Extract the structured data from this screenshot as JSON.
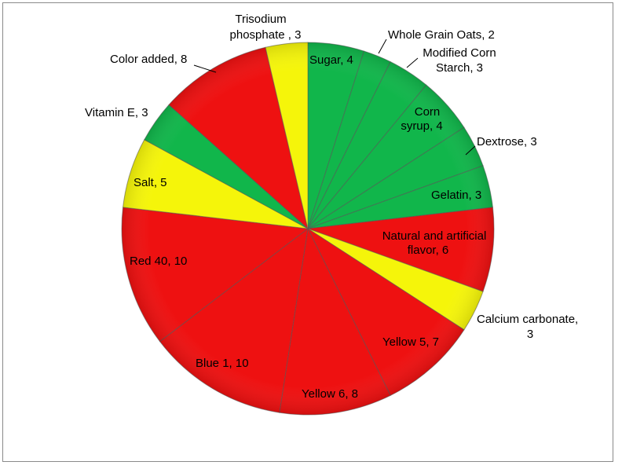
{
  "chart_data": {
    "type": "pie",
    "title": "",
    "start_angle_deg": 0,
    "direction": "clockwise",
    "slices": [
      {
        "label": "Sugar, 4",
        "category": "Sugar",
        "value": 4,
        "color": "#11b64b"
      },
      {
        "label": "Whole Grain Oats, 2",
        "category": "Whole Grain Oats",
        "value": 2,
        "color": "#11b64b"
      },
      {
        "label": "Modified Corn Starch, 3",
        "category": "Modified Corn Starch",
        "value": 3,
        "color": "#11b64b"
      },
      {
        "label": "Corn syrup, 4",
        "category": "Corn syrup",
        "value": 4,
        "color": "#11b64b"
      },
      {
        "label": "Dextrose, 3",
        "category": "Dextrose",
        "value": 3,
        "color": "#11b64b"
      },
      {
        "label": "Gelatin, 3",
        "category": "Gelatin",
        "value": 3,
        "color": "#11b64b"
      },
      {
        "label": "Natural and artificial flavor, 6",
        "category": "Natural and artificial flavor",
        "value": 6,
        "color": "#ee1111"
      },
      {
        "label": "Calcium carbonate, 3",
        "category": "Calcium carbonate",
        "value": 3,
        "color": "#f5f50a"
      },
      {
        "label": "Yellow 5, 7",
        "category": "Yellow 5",
        "value": 7,
        "color": "#ee1111"
      },
      {
        "label": "Yellow 6, 8",
        "category": "Yellow 6",
        "value": 8,
        "color": "#ee1111"
      },
      {
        "label": "Blue 1, 10",
        "category": "Blue 1",
        "value": 10,
        "color": "#ee1111"
      },
      {
        "label": "Red 40, 10",
        "category": "Red 40",
        "value": 10,
        "color": "#ee1111"
      },
      {
        "label": "Salt, 5",
        "category": "Salt",
        "value": 5,
        "color": "#f5f50a"
      },
      {
        "label": "Vitamin E, 3",
        "category": "Vitamin E",
        "value": 3,
        "color": "#11b64b"
      },
      {
        "label": "Color added, 8",
        "category": "Color added",
        "value": 8,
        "color": "#ee1111"
      },
      {
        "label": "Trisodium phosphate , 3",
        "category": "Trisodium phosphate",
        "value": 3,
        "color": "#f5f50a"
      }
    ]
  }
}
